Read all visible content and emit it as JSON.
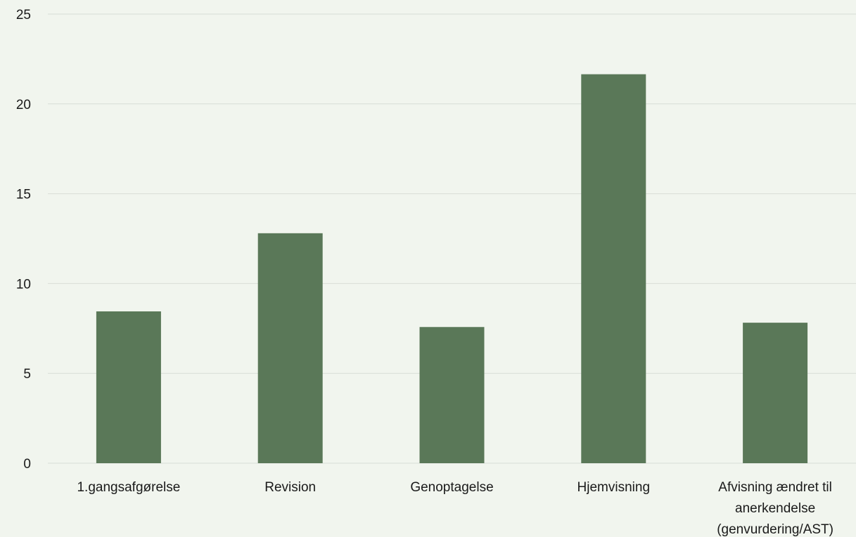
{
  "chart_data": {
    "type": "bar",
    "categories": [
      "1.gangsafgørelse",
      "Revision",
      "Genoptagelse",
      "Hjemvisning",
      "Afvisning ændret til anerkendelse (genvurdering/AST)"
    ],
    "category_lines": [
      [
        "1.gangsafgørelse"
      ],
      [
        "Revision"
      ],
      [
        "Genoptagelse"
      ],
      [
        "Hjemvisning"
      ],
      [
        "Afvisning ændret til",
        "anerkendelse",
        "(genvurdering/AST)"
      ]
    ],
    "values": [
      8.45,
      12.8,
      7.58,
      21.65,
      7.82
    ],
    "ylim": [
      0,
      25
    ],
    "yticks": [
      "0",
      "5",
      "10",
      "15",
      "20",
      "25"
    ],
    "title": "",
    "xlabel": "",
    "ylabel": "",
    "grid": true,
    "legend": "none",
    "colors": {
      "bar": "#5a7858",
      "grid": "#d8ddd6",
      "background": "#f1f5ee"
    }
  }
}
